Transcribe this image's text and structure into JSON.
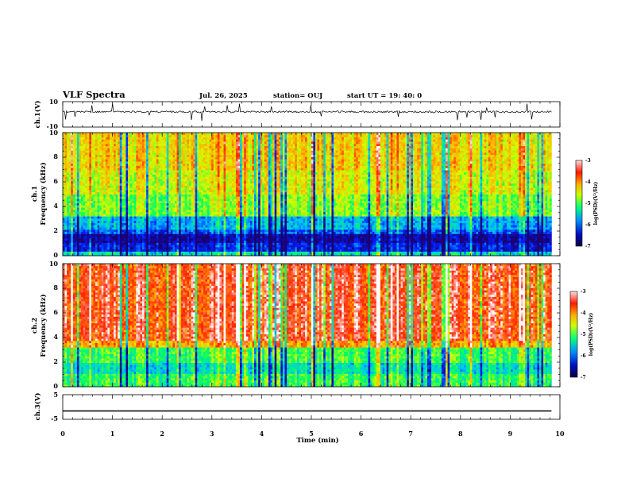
{
  "chart_data": {
    "type": "heatmap",
    "header": {
      "title": "VLF Spectra",
      "date": "Jul. 26, 2025",
      "station": "station= OUJ",
      "start": "start UT =  19: 40: 0"
    },
    "x_axis": {
      "label": "Time (min)",
      "range": [
        0,
        10
      ],
      "ticks": [
        "0",
        "1",
        "2",
        "3",
        "4",
        "5",
        "6",
        "7",
        "8",
        "9",
        "10"
      ],
      "data_end_min": 9.83
    },
    "panels": [
      {
        "id": "ch1-waveform",
        "type": "line",
        "ylabel": "ch.1(V)",
        "ylim": [
          -10,
          10
        ],
        "ticks": [
          "10",
          "-10"
        ],
        "baseline_v": 2,
        "noise_v": 1.5,
        "color": "#000000"
      },
      {
        "id": "ch1-spectrogram",
        "type": "heatmap",
        "ylabel_channel": "ch.1",
        "ylabel": "Frequency (kHz)",
        "ylim": [
          0,
          10
        ],
        "ticks": [
          "0",
          "2",
          "4",
          "6",
          "8",
          "10"
        ],
        "bands": [
          {
            "from_khz": 0.0,
            "to_khz": 0.4,
            "level": 0.35
          },
          {
            "from_khz": 0.4,
            "to_khz": 1.0,
            "level": 0.12
          },
          {
            "from_khz": 1.0,
            "to_khz": 1.8,
            "level": 0.04
          },
          {
            "from_khz": 1.8,
            "to_khz": 2.2,
            "level": 0.18
          },
          {
            "from_khz": 2.2,
            "to_khz": 3.2,
            "level": 0.28
          },
          {
            "from_khz": 3.2,
            "to_khz": 5.0,
            "level": 0.52
          },
          {
            "from_khz": 5.0,
            "to_khz": 7.0,
            "level": 0.6
          },
          {
            "from_khz": 7.0,
            "to_khz": 10.0,
            "level": 0.66
          }
        ],
        "colorbar": {
          "label": "log(PSD)(V²/Hz)",
          "range": [
            -7,
            -3
          ],
          "ticks": [
            "-3",
            "-4",
            "-5",
            "-6",
            "-7"
          ]
        }
      },
      {
        "id": "ch2-spectrogram",
        "type": "heatmap",
        "ylabel_channel": "ch.2",
        "ylabel": "Frequency (kHz)",
        "ylim": [
          0,
          10
        ],
        "ticks": [
          "0",
          "2",
          "4",
          "6",
          "8",
          "10"
        ],
        "bands": [
          {
            "from_khz": 0.0,
            "to_khz": 1.0,
            "level": 0.45
          },
          {
            "from_khz": 1.0,
            "to_khz": 2.0,
            "level": 0.35
          },
          {
            "from_khz": 2.0,
            "to_khz": 3.2,
            "level": 0.46
          },
          {
            "from_khz": 3.2,
            "to_khz": 3.8,
            "level": 0.72
          },
          {
            "from_khz": 3.8,
            "to_khz": 10.0,
            "level": 0.86
          }
        ],
        "colorbar": {
          "label": "log(PSD)(V²/Hz)",
          "range": [
            -7,
            -3
          ],
          "ticks": [
            "-3",
            "-4",
            "-5",
            "-6",
            "-7"
          ]
        }
      },
      {
        "id": "ch3-waveform",
        "type": "line",
        "ylabel": "ch.3(V)",
        "ylim": [
          -5,
          5
        ],
        "ticks": [
          "5",
          "-5"
        ],
        "baseline_v": -1.6,
        "noise_v": 0,
        "color": "#000000"
      }
    ],
    "colormap": [
      "#1a0070",
      "#0020ff",
      "#00c0ff",
      "#00ff60",
      "#d0ff00",
      "#ffb000",
      "#ff2000",
      "#ffffff"
    ]
  }
}
